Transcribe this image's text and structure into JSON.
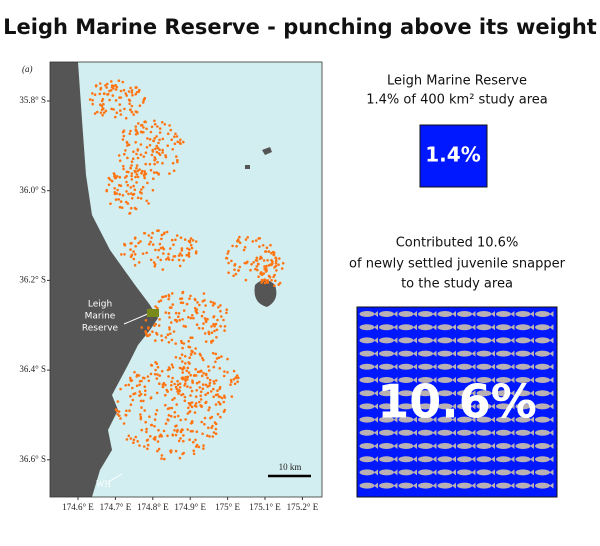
{
  "header": {
    "title": "Leigh Marine Reserve - punching above its weight"
  },
  "map": {
    "panel_label": "(a)",
    "lat_labels": [
      "35.8° S",
      "36.0° S",
      "36.2° S",
      "36.4° S",
      "36.6° S"
    ],
    "lon_labels": [
      "174.6° E",
      "174.7° E",
      "174.8° E",
      "174.9° E",
      "175° E",
      "175.1° E",
      "175.2° E"
    ],
    "reserve_label": [
      "Leigh",
      "Marine",
      "Reserve"
    ],
    "wh_label": "WH",
    "scale_label": "10 km"
  },
  "area_panel": {
    "heading": "Leigh Marine Reserve",
    "subheading": "1.4% of 400 km² study area",
    "box_text": "1.4%"
  },
  "snapper_panel": {
    "lines": [
      "Contributed 10.6%",
      "of newly settled juvenile snapper",
      "to the study area"
    ],
    "box_text": "10.6%"
  }
}
